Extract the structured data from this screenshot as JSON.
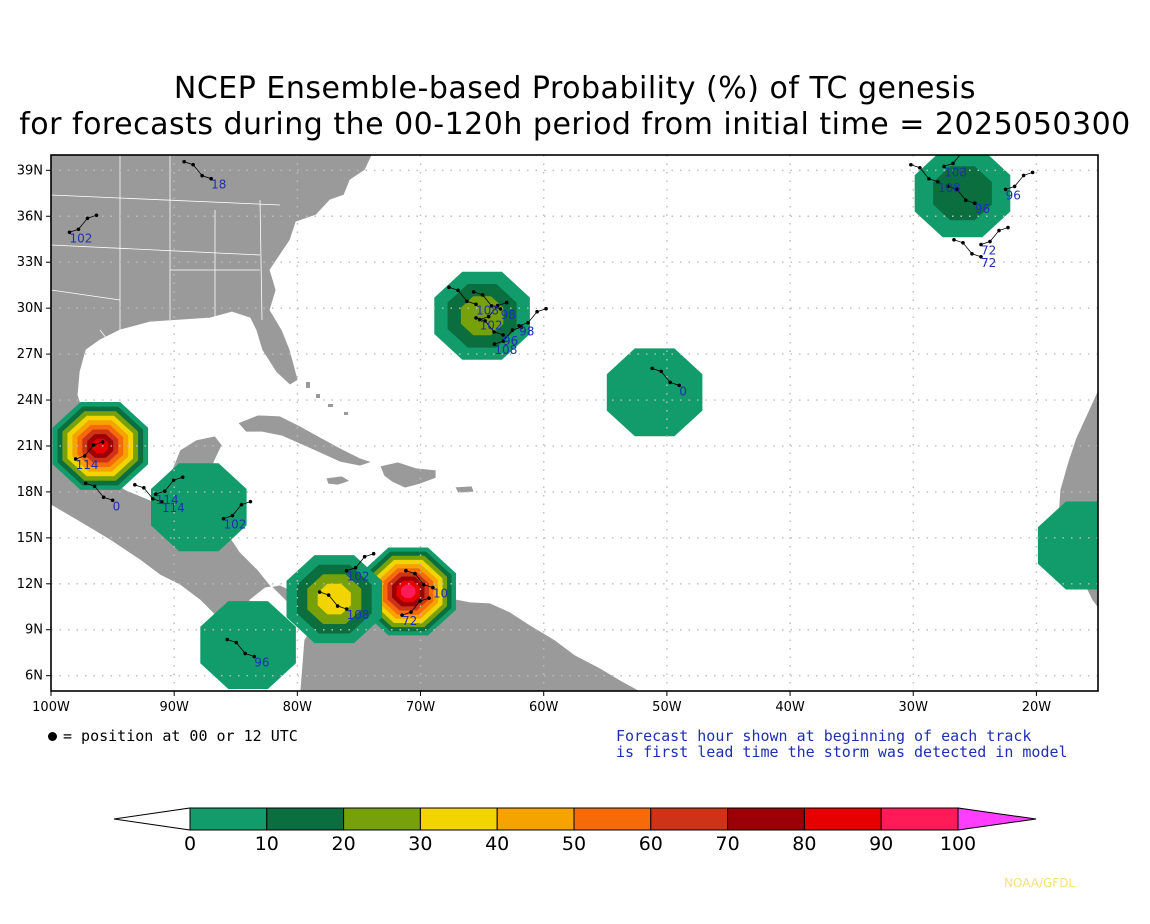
{
  "title": {
    "line1": "NCEP Ensemble-based Probability (%) of TC genesis",
    "line2": "for forecasts during the 00-120h period from initial time = 2025050300"
  },
  "map": {
    "lon_range": [
      -100,
      -15
    ],
    "lat_range": [
      5,
      40
    ],
    "x_ticks": [
      "100W",
      "90W",
      "80W",
      "70W",
      "60W",
      "50W",
      "40W",
      "30W",
      "20W"
    ],
    "y_ticks": [
      "39N",
      "36N",
      "33N",
      "30N",
      "27N",
      "24N",
      "21N",
      "18N",
      "15N",
      "12N",
      "9N",
      "6N"
    ],
    "land_color": "#9a9a9a",
    "ocean_color": "#ffffff",
    "grid": "dotted",
    "genesis_areas": [
      {
        "name": "gulf-of-mexico",
        "lon": -96,
        "lat": 21,
        "peak_percent": 90
      },
      {
        "name": "caribbean-east",
        "lon": -71,
        "lat": 11.5,
        "peak_percent": 100
      },
      {
        "name": "caribbean-west",
        "lon": -77,
        "lat": 11,
        "peak_percent": 40
      },
      {
        "name": "central-atlantic",
        "lon": -65,
        "lat": 29.5,
        "peak_percent": 30
      },
      {
        "name": "subtropical-atlantic",
        "lon": -51,
        "lat": 24.5,
        "peak_percent": 10
      },
      {
        "name": "northeast-atlantic",
        "lon": -26,
        "lat": 37.5,
        "peak_percent": 20
      },
      {
        "name": "west-africa",
        "lon": -16,
        "lat": 14.5,
        "peak_percent": 10
      },
      {
        "name": "yucatan",
        "lon": -88,
        "lat": 17,
        "peak_percent": 10
      },
      {
        "name": "east-pacific",
        "lon": -84,
        "lat": 8,
        "peak_percent": 10
      }
    ],
    "track_labels": [
      {
        "text": "18",
        "lon": -87,
        "lat": 37.8
      },
      {
        "text": "102",
        "lon": -98.5,
        "lat": 34.3
      },
      {
        "text": "108",
        "lon": -65.5,
        "lat": 29.6
      },
      {
        "text": "102",
        "lon": -65.2,
        "lat": 28.6
      },
      {
        "text": "98",
        "lon": -63.5,
        "lat": 29.3
      },
      {
        "text": "98",
        "lon": -62,
        "lat": 28.2
      },
      {
        "text": "96",
        "lon": -63.3,
        "lat": 27.6
      },
      {
        "text": "108",
        "lon": -64,
        "lat": 27
      },
      {
        "text": "0",
        "lon": -49,
        "lat": 24.3
      },
      {
        "text": "108",
        "lon": -27.5,
        "lat": 38.6
      },
      {
        "text": "108",
        "lon": -28,
        "lat": 37.6
      },
      {
        "text": "96",
        "lon": -22.5,
        "lat": 37.1
      },
      {
        "text": "96",
        "lon": -25,
        "lat": 36.2
      },
      {
        "text": "72",
        "lon": -24.5,
        "lat": 33.5
      },
      {
        "text": "72",
        "lon": -24.5,
        "lat": 32.7
      },
      {
        "text": "114",
        "lon": -98,
        "lat": 19.5
      },
      {
        "text": "0",
        "lon": -95,
        "lat": 16.8
      },
      {
        "text": "114",
        "lon": -91.5,
        "lat": 17.2
      },
      {
        "text": "114",
        "lon": -91,
        "lat": 16.7
      },
      {
        "text": "102",
        "lon": -86,
        "lat": 15.6
      },
      {
        "text": "96",
        "lon": -83.5,
        "lat": 6.6
      },
      {
        "text": "102",
        "lon": -76,
        "lat": 12.2
      },
      {
        "text": "108",
        "lon": -76,
        "lat": 9.7
      },
      {
        "text": "72",
        "lon": -71.5,
        "lat": 9.3
      },
      {
        "text": "10",
        "lon": -69,
        "lat": 11.1
      }
    ]
  },
  "legend": {
    "dot_note": "= position at 00 or 12 UTC",
    "right_note_line1": "Forecast hour shown at beginning of each track",
    "right_note_line2": "is first lead time the storm was detected in model"
  },
  "colorbar": {
    "labels": [
      "0",
      "10",
      "20",
      "30",
      "40",
      "50",
      "60",
      "70",
      "80",
      "90",
      "100"
    ],
    "colors": [
      "#129c6c",
      "#0b6e3f",
      "#77a10b",
      "#f2d400",
      "#f6a300",
      "#f66a0a",
      "#cf3317",
      "#9c0007",
      "#e60000",
      "#ff1b57"
    ],
    "under_color": "#ffffff",
    "over_color": "#ff3dff"
  },
  "credit": "NOAA/GFDL"
}
